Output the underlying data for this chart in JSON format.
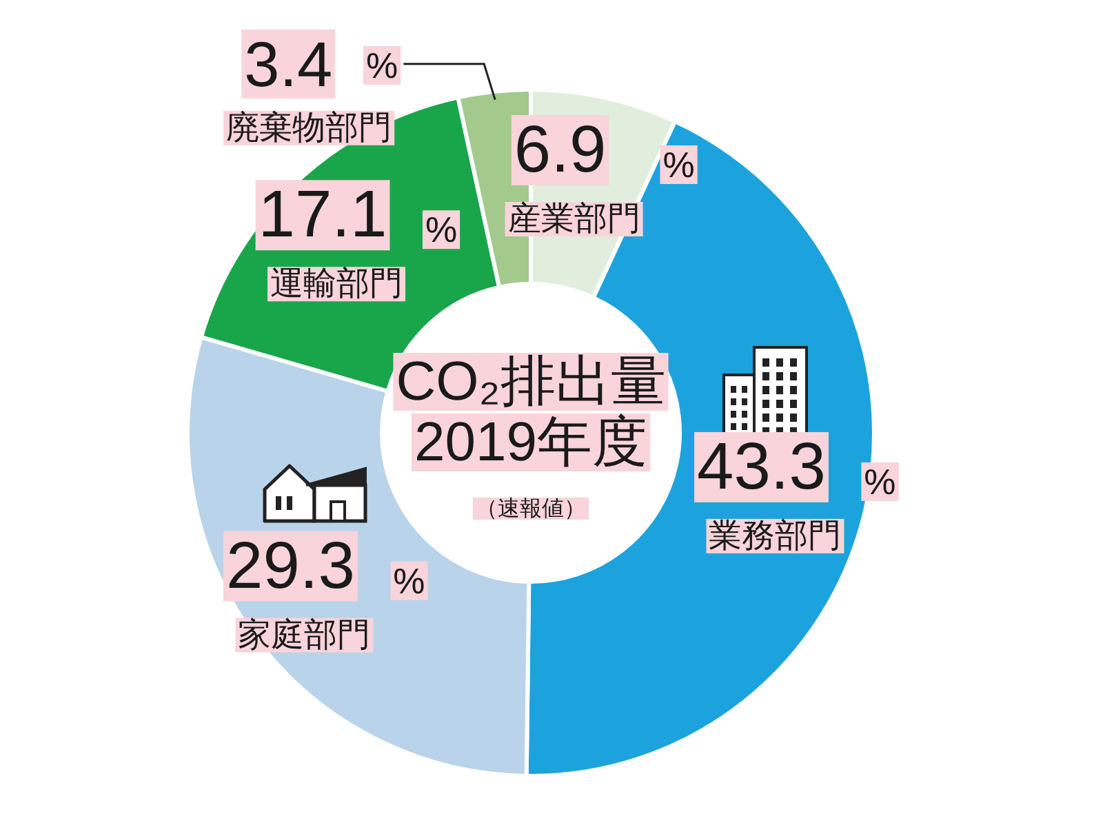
{
  "chart_data": {
    "type": "donut",
    "title": "CO₂排出量 2019年度",
    "subtitle": "（速報値）",
    "categories": [
      "産業部門",
      "業務部門",
      "家庭部門",
      "運輸部門",
      "廃棄物部門"
    ],
    "values": [
      6.9,
      43.3,
      29.3,
      17.1,
      3.4
    ],
    "value_labels": [
      "6.9 %",
      "43.3 %",
      "29.3 %",
      "17.1 %",
      "3.4 %"
    ],
    "colors": [
      "#e1eedd",
      "#1ca3dd",
      "#b9d3ea",
      "#19a64a",
      "#a3c98d"
    ]
  }
}
